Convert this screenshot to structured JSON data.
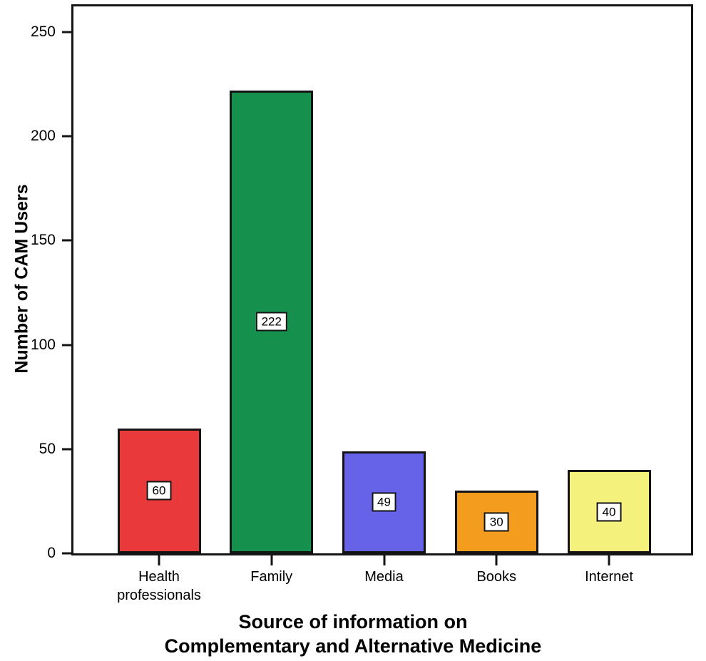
{
  "chart_data": {
    "type": "bar",
    "title": "",
    "xlabel": "Source of information on Complementary and Alternative Medicine",
    "xlabel_lines": [
      "Source of information on",
      "Complementary and Alternative Medicine"
    ],
    "ylabel": "Number of CAM Users",
    "categories": [
      "Health professionals",
      "Family",
      "Media",
      "Books",
      "Internet"
    ],
    "values": [
      60,
      222,
      49,
      30,
      40
    ],
    "value_labels": [
      "60",
      "222",
      "49",
      "30",
      "40"
    ],
    "bar_colors": [
      "#e9393b",
      "#16904d",
      "#6663e8",
      "#f39c1d",
      "#f5f17d"
    ],
    "ylim": [
      0,
      250
    ],
    "yticks": [
      0,
      50,
      100,
      150,
      200,
      250
    ],
    "grid": false,
    "legend": false,
    "frame_color": "#141414",
    "background_color": "#ffffff"
  }
}
